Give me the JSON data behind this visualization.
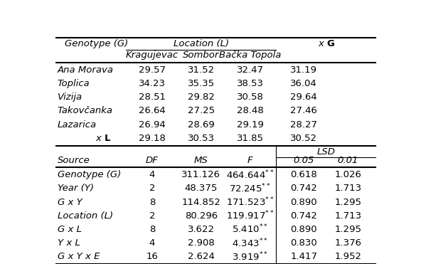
{
  "bg_color": "white",
  "fontsize": 9.5,
  "upper_data_rows": [
    [
      "Ana Morava",
      "29.57",
      "31.52",
      "32.47",
      "31.19"
    ],
    [
      "Toplica",
      "34.23",
      "35.35",
      "38.53",
      "36.04"
    ],
    [
      "Vizija",
      "28.51",
      "29.82",
      "30.58",
      "29.64"
    ],
    [
      "Takovčanka",
      "26.64",
      "27.25",
      "28.48",
      "27.46"
    ],
    [
      "Lazarica",
      "26.94",
      "28.69",
      "29.19",
      "28.27"
    ],
    [
      "xL_special",
      "29.18",
      "30.53",
      "31.85",
      "30.52"
    ]
  ],
  "anova_header": [
    "Source",
    "DF",
    "MS",
    "F",
    "0.05",
    "0.01"
  ],
  "anova_rows": [
    [
      "Genotype (G)",
      "4",
      "311.126",
      "464.644",
      "0.618",
      "1.026"
    ],
    [
      "Year (Y)",
      "2",
      "48.375",
      "72.245",
      "0.742",
      "1.713"
    ],
    [
      "G x Y",
      "8",
      "114.852",
      "171.523",
      "0.890",
      "1.295"
    ],
    [
      "Location (L)",
      "2",
      "80.296",
      "119.917",
      "0.742",
      "1.713"
    ],
    [
      "G x L",
      "8",
      "3.622",
      "5.410",
      "0.890",
      "1.295"
    ],
    [
      "Y x L",
      "4",
      "2.908",
      "4.343",
      "0.830",
      "1.376"
    ],
    [
      "G x Y x E",
      "16",
      "2.624",
      "3.919",
      "1.417",
      "1.952"
    ]
  ]
}
